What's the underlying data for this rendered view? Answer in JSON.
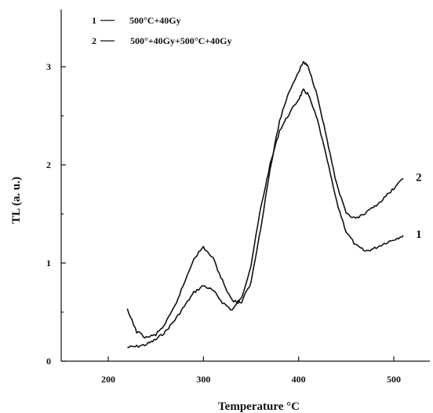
{
  "chart_data": {
    "type": "line",
    "title": "",
    "xlabel": "Temperature °C",
    "ylabel": "TL (a. u.)",
    "xlim": [
      150,
      545
    ],
    "ylim": [
      0,
      3.15
    ],
    "x_ticks": [
      200,
      300,
      400,
      500
    ],
    "x_tick_labels": [
      "200",
      "300",
      "400",
      "500"
    ],
    "y_ticks": [
      0,
      1,
      2,
      3
    ],
    "y_tick_labels": [
      "0",
      "1",
      "2",
      "3"
    ],
    "grid": false,
    "legend_position": "top-left",
    "legend": [
      {
        "number": "1",
        "text": "500°C+40Gy"
      },
      {
        "number": "2",
        "text": "500°+40Gy+500°C+40Gy"
      }
    ],
    "series": [
      {
        "name": "500°C+40Gy",
        "label": "1",
        "x": [
          220,
          230,
          240,
          250,
          260,
          270,
          280,
          290,
          300,
          310,
          320,
          330,
          340,
          350,
          360,
          370,
          380,
          390,
          400,
          405,
          410,
          420,
          430,
          440,
          450,
          460,
          470,
          480,
          490,
          500,
          510
        ],
        "y": [
          0.14,
          0.15,
          0.17,
          0.22,
          0.3,
          0.42,
          0.56,
          0.7,
          0.77,
          0.72,
          0.6,
          0.52,
          0.64,
          0.98,
          1.55,
          2.0,
          2.35,
          2.52,
          2.67,
          2.76,
          2.72,
          2.45,
          2.05,
          1.62,
          1.32,
          1.18,
          1.12,
          1.15,
          1.2,
          1.24,
          1.28
        ]
      },
      {
        "name": "500°+40Gy+500°C+40Gy",
        "label": "2",
        "x": [
          220,
          230,
          240,
          250,
          260,
          270,
          280,
          290,
          300,
          310,
          320,
          330,
          340,
          350,
          360,
          370,
          380,
          390,
          400,
          405,
          410,
          420,
          430,
          440,
          450,
          460,
          470,
          480,
          490,
          500,
          510
        ],
        "y": [
          0.52,
          0.3,
          0.24,
          0.27,
          0.38,
          0.56,
          0.8,
          1.05,
          1.16,
          1.05,
          0.82,
          0.62,
          0.6,
          0.8,
          1.35,
          1.95,
          2.45,
          2.75,
          2.95,
          3.05,
          3.0,
          2.7,
          2.25,
          1.8,
          1.5,
          1.45,
          1.5,
          1.58,
          1.66,
          1.76,
          1.86
        ]
      }
    ]
  }
}
